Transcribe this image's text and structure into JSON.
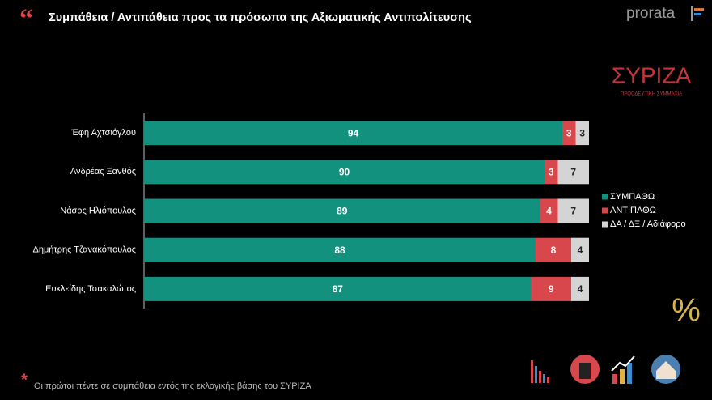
{
  "chart_data": {
    "type": "stacked-bar-horizontal",
    "title": "Συμπάθεια / Αντιπάθεια προς τα πρόσωπα της Αξιωματικής Αντιπολίτευσης",
    "categories": [
      "Έφη Αχτσιόγλου",
      "Ανδρέας Ξανθός",
      "Νάσος Ηλιόπουλος",
      "Δημήτρης Τζανακόπουλος",
      "Ευκλείδης Τσακαλώτος"
    ],
    "series": [
      {
        "name": "ΣΥΜΠΑΘΩ",
        "color": "#12917f",
        "values": [
          94,
          90,
          89,
          88,
          87
        ]
      },
      {
        "name": "ΑΝΤΙΠΑΘΩ",
        "color": "#d8474b",
        "values": [
          3,
          3,
          4,
          8,
          9
        ]
      },
      {
        "name": "ΔΑ / ΔΞ / Αδιάφορο",
        "color": "#d4d4d4",
        "values": [
          3,
          7,
          7,
          4,
          4
        ]
      }
    ],
    "xlim": [
      0,
      100
    ],
    "legend": "right",
    "data_labels": true
  },
  "branding": {
    "logo": "prorata",
    "party_logo": "ΣΥΡΙΖΑ",
    "party_subtitle": "ΠΡΟΟΔΕΥΤΙΚΗ ΣΥΜΜΑΧΙΑ",
    "percent_symbol": "%"
  },
  "footnote": "Οι πρώτοι πέντε σε συμπάθεια εντός της εκλογικής βάσης του ΣΥΡΙΖΑ"
}
